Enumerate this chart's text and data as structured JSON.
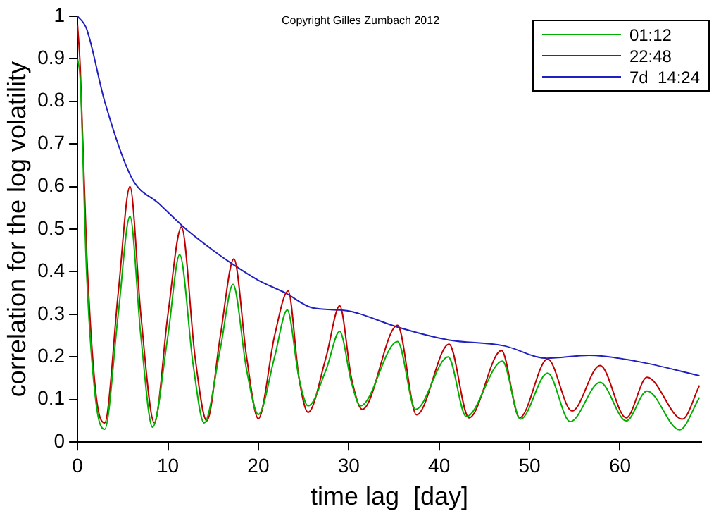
{
  "chart_data": {
    "type": "line",
    "xlabel": "time lag  [day]",
    "ylabel": "correlation for the log volatility",
    "annotations": [
      "Copyright Gilles Zumbach 2012"
    ],
    "xlim": [
      0,
      69
    ],
    "xticks": [
      0,
      10,
      20,
      30,
      40,
      50,
      60
    ],
    "ylim": [
      0,
      1
    ],
    "yticks": [
      0,
      0.1,
      0.2,
      0.3,
      0.4,
      0.5,
      0.6,
      0.7,
      0.8,
      0.9,
      1
    ],
    "grid": false,
    "legend": "top right",
    "marker": "none",
    "line_style": "solid",
    "series": [
      {
        "name": "01:12",
        "color": "#00b000",
        "x": [
          0,
          0.3,
          1,
          2,
          3,
          4.5,
          5.8,
          7,
          8.3,
          10,
          11.3,
          12.8,
          14,
          15.8,
          17.2,
          18.7,
          20,
          21.8,
          23.2,
          24.5,
          25.5,
          27.5,
          29,
          30.3,
          31.3,
          35.4,
          37.4,
          41,
          43,
          47,
          49,
          52,
          54.5,
          57.8,
          60.7,
          63,
          66.6,
          68.8
        ],
        "values": [
          0.9,
          0.85,
          0.4,
          0.1,
          0.03,
          0.3,
          0.53,
          0.25,
          0.035,
          0.25,
          0.44,
          0.18,
          0.045,
          0.22,
          0.37,
          0.17,
          0.065,
          0.2,
          0.31,
          0.15,
          0.085,
          0.17,
          0.26,
          0.14,
          0.085,
          0.236,
          0.077,
          0.2,
          0.06,
          0.19,
          0.054,
          0.162,
          0.048,
          0.14,
          0.05,
          0.12,
          0.029,
          0.105
        ]
      },
      {
        "name": "22:48",
        "color": "#c00000",
        "x": [
          0,
          0.3,
          1,
          2,
          3,
          4.5,
          5.8,
          7,
          8.5,
          10,
          11.5,
          13,
          14.3,
          15.8,
          17.3,
          18.7,
          20,
          21.8,
          23.3,
          24.5,
          25.5,
          27.5,
          29,
          30.3,
          31.5,
          35.4,
          37.5,
          41.1,
          43.3,
          46.9,
          48.9,
          52,
          54.7,
          57.8,
          60.7,
          63,
          66.9,
          68.8
        ],
        "values": [
          0.98,
          0.88,
          0.45,
          0.12,
          0.045,
          0.35,
          0.6,
          0.3,
          0.045,
          0.3,
          0.505,
          0.2,
          0.05,
          0.25,
          0.43,
          0.2,
          0.055,
          0.25,
          0.355,
          0.15,
          0.07,
          0.2,
          0.32,
          0.15,
          0.077,
          0.274,
          0.064,
          0.23,
          0.057,
          0.215,
          0.057,
          0.195,
          0.073,
          0.18,
          0.057,
          0.152,
          0.054,
          0.133
        ]
      },
      {
        "name": "7d  14:24",
        "color": "#2020c0",
        "x": [
          0,
          1,
          3,
          6,
          9,
          12,
          15,
          17,
          20,
          23,
          26,
          29,
          30.4,
          35.4,
          41,
          47.2,
          51.9,
          56.6,
          61.8,
          68.8
        ],
        "values": [
          1,
          0.97,
          0.8,
          0.62,
          0.56,
          0.5,
          0.45,
          0.42,
          0.38,
          0.35,
          0.315,
          0.31,
          0.306,
          0.27,
          0.24,
          0.226,
          0.197,
          0.204,
          0.19,
          0.156
        ]
      }
    ]
  }
}
